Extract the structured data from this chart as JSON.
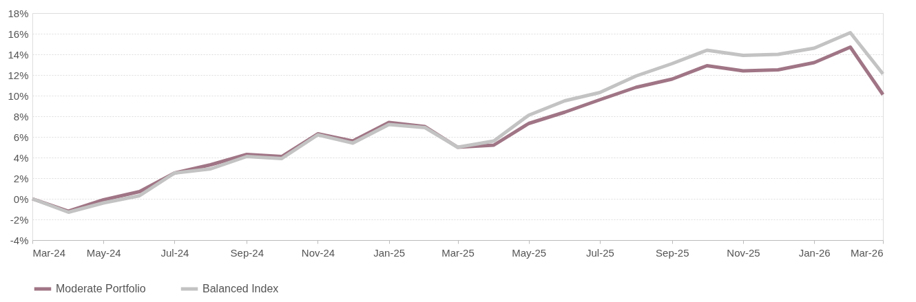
{
  "chart_data": {
    "type": "line",
    "x": [
      "2024-03",
      "2024-04",
      "2024-05",
      "2024-06",
      "2024-07",
      "2024-08",
      "2024-09",
      "2024-10",
      "2024-11",
      "2024-12",
      "2025-01",
      "2025-02",
      "2025-03",
      "2025-04",
      "2025-05",
      "2025-06",
      "2025-07",
      "2025-08",
      "2025-09",
      "2025-10",
      "2025-11",
      "2025-12",
      "2026-01",
      "2026-02",
      "2026-03"
    ],
    "series": [
      {
        "name": "Moderate Portfolio",
        "color": "#a07585",
        "values": [
          0,
          -1.2,
          -0.1,
          0.7,
          2.5,
          3.3,
          4.3,
          4.1,
          6.3,
          5.6,
          7.4,
          7.0,
          5.0,
          5.2,
          7.3,
          8.4,
          9.6,
          10.8,
          11.6,
          12.9,
          12.4,
          12.5,
          13.2,
          14.7,
          10.1
        ]
      },
      {
        "name": "Balanced Index",
        "color": "#c3c3c3",
        "values": [
          0,
          -1.3,
          -0.4,
          0.3,
          2.5,
          2.9,
          4.1,
          3.9,
          6.2,
          5.4,
          7.2,
          6.9,
          5.0,
          5.6,
          8.1,
          9.5,
          10.3,
          11.9,
          13.1,
          14.4,
          13.9,
          14.0,
          14.6,
          16.1,
          12.1
        ]
      }
    ],
    "xlim": [
      "2024-03",
      "2026-03"
    ],
    "xticks": [
      {
        "value": "2024-03",
        "label": "Mar-24"
      },
      {
        "value": "2024-05",
        "label": "May-24"
      },
      {
        "value": "2024-07",
        "label": "Jul-24"
      },
      {
        "value": "2024-09",
        "label": "Sep-24"
      },
      {
        "value": "2024-11",
        "label": "Nov-24"
      },
      {
        "value": "2025-01",
        "label": "Jan-25"
      },
      {
        "value": "2025-03",
        "label": "Mar-25"
      },
      {
        "value": "2025-05",
        "label": "May-25"
      },
      {
        "value": "2025-07",
        "label": "Jul-25"
      },
      {
        "value": "2025-09",
        "label": "Sep-25"
      },
      {
        "value": "2025-11",
        "label": "Nov-25"
      },
      {
        "value": "2026-01",
        "label": "Jan-26"
      },
      {
        "value": "2026-03",
        "label": "Mar-26"
      }
    ],
    "ylim": [
      -4,
      18
    ],
    "yticks": [
      {
        "value": -4,
        "label": "-4%"
      },
      {
        "value": -2,
        "label": "-2%"
      },
      {
        "value": 0,
        "label": "0%"
      },
      {
        "value": 2,
        "label": "2%"
      },
      {
        "value": 4,
        "label": "4%"
      },
      {
        "value": 6,
        "label": "6%"
      },
      {
        "value": 8,
        "label": "8%"
      },
      {
        "value": 10,
        "label": "10%"
      },
      {
        "value": 12,
        "label": "12%"
      },
      {
        "value": 14,
        "label": "14%"
      },
      {
        "value": 16,
        "label": "16%"
      },
      {
        "value": 18,
        "label": "18%"
      }
    ],
    "grid": "y",
    "legend": "bottom",
    "marker": "none",
    "line_style": "solid"
  }
}
